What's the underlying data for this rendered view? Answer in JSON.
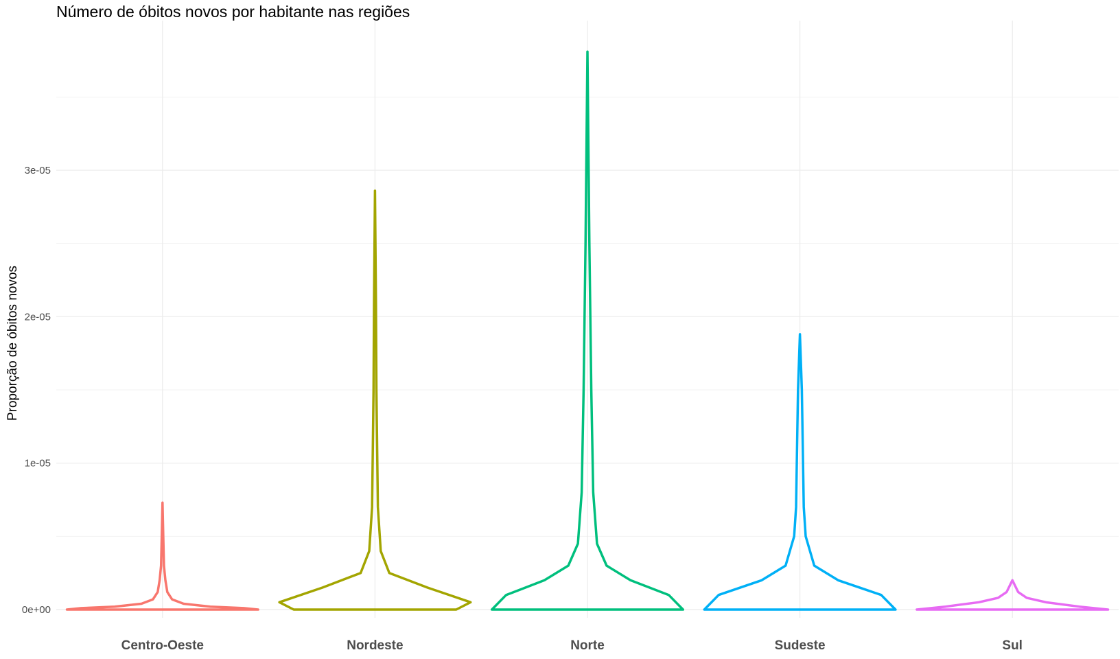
{
  "chart_data": {
    "type": "violin",
    "title": "Número de óbitos novos por habitante nas regiões",
    "xlabel": "",
    "ylabel": "Proporção de óbitos novos",
    "categories": [
      "Centro-Oeste",
      "Nordeste",
      "Norte",
      "Sudeste",
      "Sul"
    ],
    "y_ticks": [
      0,
      1e-05,
      2e-05,
      3e-05
    ],
    "y_tick_labels": [
      "0e+00",
      "1e-05",
      "2e-05",
      "3e-05"
    ],
    "ylim": [
      -1e-06,
      3.9e-05
    ],
    "grid": true,
    "legend": "none",
    "series": [
      {
        "category": "Centro-Oeste",
        "color": "#F8766D",
        "max": 7.3e-06,
        "profile": [
          [
            0,
            1.0
          ],
          [
            1e-07,
            0.85
          ],
          [
            2e-07,
            0.5
          ],
          [
            4e-07,
            0.22
          ],
          [
            7e-07,
            0.1
          ],
          [
            1.2e-06,
            0.05
          ],
          [
            2e-06,
            0.03
          ],
          [
            3e-06,
            0.015
          ],
          [
            5e-06,
            0.008
          ],
          [
            7.3e-06,
            0.0
          ]
        ]
      },
      {
        "category": "Nordeste",
        "color": "#A3A500",
        "max": 2.86e-05,
        "profile": [
          [
            0,
            0.85
          ],
          [
            5e-07,
            1.0
          ],
          [
            1.5e-06,
            0.55
          ],
          [
            2.5e-06,
            0.15
          ],
          [
            4e-06,
            0.06
          ],
          [
            7e-06,
            0.03
          ],
          [
            1.5e-05,
            0.015
          ],
          [
            2.1e-05,
            0.01
          ],
          [
            2.86e-05,
            0.0
          ]
        ]
      },
      {
        "category": "Norte",
        "color": "#00BF7D",
        "max": 3.81e-05,
        "profile": [
          [
            0,
            1.0
          ],
          [
            1e-06,
            0.85
          ],
          [
            2e-06,
            0.45
          ],
          [
            3e-06,
            0.2
          ],
          [
            4.5e-06,
            0.1
          ],
          [
            8e-06,
            0.06
          ],
          [
            1.5e-05,
            0.04
          ],
          [
            2.5e-05,
            0.02
          ],
          [
            3.81e-05,
            0.0
          ]
        ]
      },
      {
        "category": "Sudeste",
        "color": "#00B0F6",
        "max": 1.88e-05,
        "profile": [
          [
            0,
            1.0
          ],
          [
            1e-06,
            0.85
          ],
          [
            2e-06,
            0.4
          ],
          [
            3e-06,
            0.15
          ],
          [
            5e-06,
            0.06
          ],
          [
            7e-06,
            0.04
          ],
          [
            1.5e-05,
            0.02
          ],
          [
            1.88e-05,
            0.0
          ]
        ]
      },
      {
        "category": "Sul",
        "color": "#E76BF3",
        "max": 2e-06,
        "profile": [
          [
            0,
            1.0
          ],
          [
            2e-07,
            0.7
          ],
          [
            5e-07,
            0.35
          ],
          [
            8e-07,
            0.15
          ],
          [
            1.2e-06,
            0.06
          ],
          [
            1.6e-06,
            0.03
          ],
          [
            2e-06,
            0.0
          ]
        ]
      }
    ]
  }
}
